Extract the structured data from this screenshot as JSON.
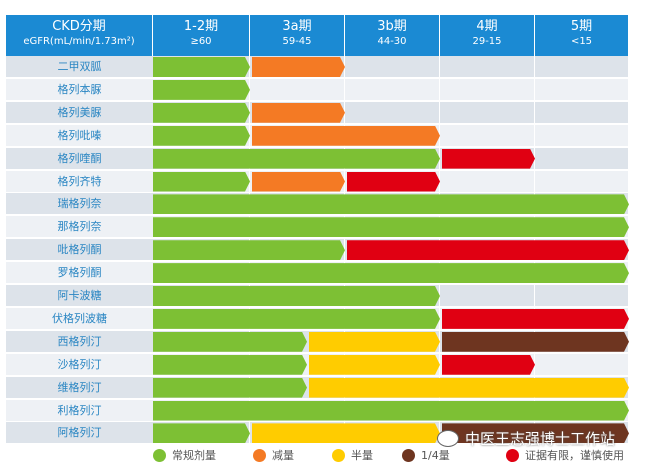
{
  "chart_data": {
    "type": "table",
    "header": {
      "title": "CKD分期",
      "subtitle": "eGFR(mL/min/1.73m²)"
    },
    "stages": [
      {
        "label": "1-2期",
        "range": "≥60"
      },
      {
        "label": "3a期",
        "range": "59-45"
      },
      {
        "label": "3b期",
        "range": "44-30"
      },
      {
        "label": "4期",
        "range": "29-15"
      },
      {
        "label": "5期",
        "range": "<15"
      }
    ],
    "legend": [
      {
        "key": "normal",
        "label": "常规剂量",
        "color": "#7dc034"
      },
      {
        "key": "reduce",
        "label": "减量",
        "color": "#f47a24"
      },
      {
        "key": "half",
        "label": "半量",
        "color": "#ffcc00"
      },
      {
        "key": "quarter",
        "label": "1/4量",
        "color": "#6e3520"
      },
      {
        "key": "caution",
        "label": "证据有限，谨慎使用",
        "color": "#e00012"
      }
    ],
    "segment_units": "stage columns (0 = start of 1-2期, 5 = end of 5期)",
    "drugs": [
      {
        "name": "二甲双胍",
        "segments": [
          [
            "normal",
            0,
            1
          ],
          [
            "reduce",
            1,
            2
          ]
        ]
      },
      {
        "name": "格列本脲",
        "segments": [
          [
            "normal",
            0,
            1
          ]
        ]
      },
      {
        "name": "格列美脲",
        "segments": [
          [
            "normal",
            0,
            1
          ],
          [
            "reduce",
            1,
            2
          ]
        ]
      },
      {
        "name": "格列吡嗪",
        "segments": [
          [
            "normal",
            0,
            1
          ],
          [
            "reduce",
            1,
            3
          ]
        ]
      },
      {
        "name": "格列喹酮",
        "segments": [
          [
            "normal",
            0,
            3
          ],
          [
            "caution",
            3,
            4
          ]
        ]
      },
      {
        "name": "格列齐特",
        "segments": [
          [
            "normal",
            0,
            1
          ],
          [
            "reduce",
            1,
            2
          ],
          [
            "caution",
            2,
            3
          ]
        ]
      },
      {
        "name": "瑞格列奈",
        "segments": [
          [
            "normal",
            0,
            5
          ]
        ]
      },
      {
        "name": "那格列奈",
        "segments": [
          [
            "normal",
            0,
            5
          ]
        ]
      },
      {
        "name": "吡格列酮",
        "segments": [
          [
            "normal",
            0,
            2
          ],
          [
            "caution",
            2,
            5
          ]
        ]
      },
      {
        "name": "罗格列酮",
        "segments": [
          [
            "normal",
            0,
            5
          ]
        ]
      },
      {
        "name": "阿卡波糖",
        "segments": [
          [
            "normal",
            0,
            3
          ]
        ]
      },
      {
        "name": "伏格列波糖",
        "segments": [
          [
            "normal",
            0,
            3
          ],
          [
            "caution",
            3,
            5
          ]
        ]
      },
      {
        "name": "西格列汀",
        "segments": [
          [
            "normal",
            0,
            1.6
          ],
          [
            "half",
            1.6,
            3
          ],
          [
            "quarter",
            3,
            5
          ]
        ]
      },
      {
        "name": "沙格列汀",
        "segments": [
          [
            "normal",
            0,
            1.6
          ],
          [
            "half",
            1.6,
            3
          ],
          [
            "caution",
            3,
            4
          ]
        ]
      },
      {
        "name": "维格列汀",
        "segments": [
          [
            "normal",
            0,
            1.6
          ],
          [
            "half",
            1.6,
            5
          ]
        ]
      },
      {
        "name": "利格列汀",
        "segments": [
          [
            "normal",
            0,
            5
          ]
        ]
      },
      {
        "name": "阿格列汀",
        "segments": [
          [
            "normal",
            0,
            1
          ],
          [
            "half",
            1,
            3
          ],
          [
            "quarter",
            3,
            5
          ]
        ]
      }
    ]
  },
  "watermark": "中医王志强博士工作站"
}
